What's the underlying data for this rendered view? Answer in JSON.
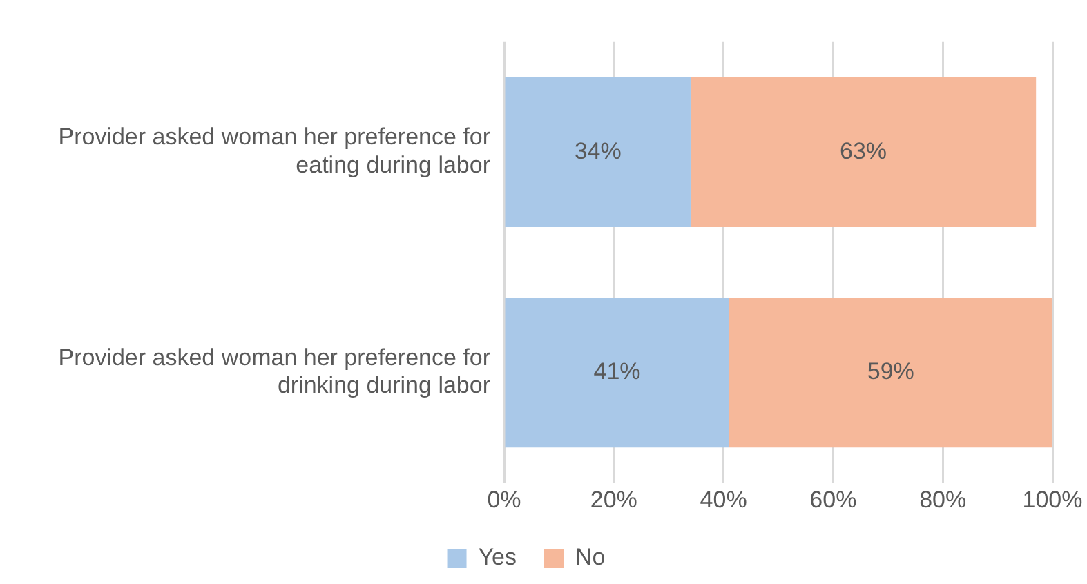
{
  "chart_data": {
    "type": "bar",
    "orientation": "horizontal",
    "stacked": true,
    "categories": [
      "Provider asked woman her preference for eating during labor",
      "Provider asked woman her preference for drinking during labor"
    ],
    "series": [
      {
        "name": "Yes",
        "color": "#a9c8e8",
        "values": [
          34,
          41
        ],
        "value_labels": [
          "34%",
          "41%"
        ]
      },
      {
        "name": "No",
        "color": "#f6b89a",
        "values": [
          63,
          59
        ],
        "value_labels": [
          "63%",
          "59%"
        ]
      }
    ],
    "xlim": [
      0,
      100
    ],
    "xticks": [
      {
        "value": 0,
        "label": "0%"
      },
      {
        "value": 20,
        "label": "20%"
      },
      {
        "value": 40,
        "label": "40%"
      },
      {
        "value": 60,
        "label": "60%"
      },
      {
        "value": 80,
        "label": "80%"
      },
      {
        "value": 100,
        "label": "100%"
      }
    ],
    "grid": "x",
    "legend": "bottom"
  }
}
